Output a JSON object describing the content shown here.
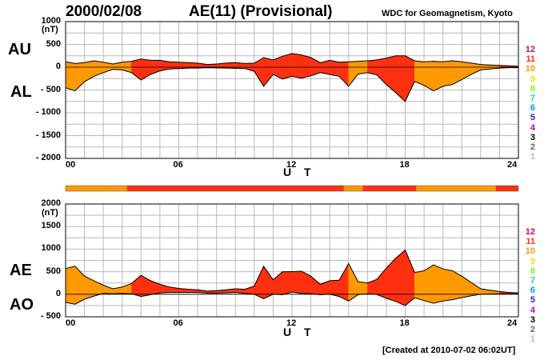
{
  "header": {
    "date": "2000/02/08",
    "title": "AE(11) (Provisional)",
    "organization": "WDC for Geomagnetism, Kyoto",
    "created": "[Created at 2010-07-02 06:02UT]"
  },
  "activity_levels": {
    "labels": [
      "12",
      "11",
      "10",
      "9",
      "8",
      "7",
      "6",
      "5",
      "4",
      "3",
      "2",
      "1"
    ],
    "colors": [
      "#e0006a",
      "#ff3010",
      "#ff9900",
      "#ffe000",
      "#88ee22",
      "#22ccbb",
      "#0099ff",
      "#3322cc",
      "#bb00cc",
      "#000000",
      "#666666",
      "#bbbbbb"
    ]
  },
  "chart_data": [
    {
      "type": "area",
      "panel": "top",
      "series_labels": [
        "AU",
        "AL"
      ],
      "y_unit": "(nT)",
      "ylim": [
        -2000,
        1000
      ],
      "yticks": [
        "1000",
        "500",
        "0",
        "- 500",
        "- 1000",
        "- 1500",
        "- 2000"
      ],
      "xlim": [
        0,
        24
      ],
      "xticks": [
        "00",
        "06",
        "12",
        "18",
        "24"
      ],
      "xlabel": "U T",
      "grid": true,
      "x": [
        0,
        0.5,
        1,
        1.5,
        2,
        2.5,
        3,
        3.5,
        4,
        4.5,
        5,
        5.5,
        6,
        6.5,
        7,
        7.5,
        8,
        8.5,
        9,
        9.5,
        10,
        10.5,
        11,
        11.5,
        12,
        12.5,
        13,
        13.5,
        14,
        14.5,
        15,
        15.5,
        16,
        16.5,
        17,
        17.5,
        18,
        18.5,
        19,
        19.5,
        20,
        20.5,
        21,
        21.5,
        22,
        22.5,
        23,
        23.5,
        24
      ],
      "upper": [
        120,
        80,
        100,
        140,
        110,
        70,
        110,
        130,
        180,
        150,
        150,
        120,
        110,
        100,
        90,
        60,
        70,
        90,
        100,
        80,
        90,
        210,
        160,
        240,
        300,
        270,
        210,
        100,
        150,
        110,
        120,
        130,
        140,
        160,
        200,
        250,
        250,
        140,
        120,
        130,
        120,
        140,
        120,
        90,
        60,
        50,
        40,
        30,
        20
      ],
      "lower": [
        -450,
        -520,
        -320,
        -200,
        -120,
        -50,
        -60,
        -120,
        -280,
        -160,
        -80,
        -40,
        -30,
        -20,
        -20,
        -10,
        -15,
        -20,
        -25,
        -30,
        -90,
        -420,
        -160,
        -260,
        -200,
        -240,
        -190,
        -120,
        -160,
        -200,
        -420,
        -150,
        -120,
        -170,
        -380,
        -560,
        -750,
        -310,
        -400,
        -520,
        -420,
        -380,
        -270,
        -160,
        -60,
        -40,
        -20,
        -10,
        -10
      ],
      "segment_levels": [
        10,
        10,
        10,
        10,
        10,
        10,
        10,
        11,
        11,
        11,
        11,
        11,
        11,
        11,
        11,
        11,
        11,
        11,
        11,
        11,
        11,
        11,
        11,
        11,
        11,
        11,
        11,
        11,
        11,
        11,
        10,
        10,
        11,
        11,
        11,
        11,
        11,
        10,
        10,
        10,
        10,
        10,
        10,
        10,
        10,
        10,
        11,
        11
      ]
    },
    {
      "type": "area",
      "panel": "bottom",
      "series_labels": [
        "AE",
        "AO"
      ],
      "y_unit": "(nT)",
      "ylim": [
        -500,
        2000
      ],
      "yticks": [
        "2000",
        "1500",
        "1000",
        "500",
        "0",
        "- 500"
      ],
      "xlim": [
        0,
        24
      ],
      "xticks": [
        "00",
        "06",
        "12",
        "18",
        "24"
      ],
      "xlabel": "U T",
      "grid": true,
      "x": [
        0,
        0.5,
        1,
        1.5,
        2,
        2.5,
        3,
        3.5,
        4,
        4.5,
        5,
        5.5,
        6,
        6.5,
        7,
        7.5,
        8,
        8.5,
        9,
        9.5,
        10,
        10.5,
        11,
        11.5,
        12,
        12.5,
        13,
        13.5,
        14,
        14.5,
        15,
        15.5,
        16,
        16.5,
        17,
        17.5,
        18,
        18.5,
        19,
        19.5,
        20,
        20.5,
        21,
        21.5,
        22,
        22.5,
        23,
        23.5,
        24
      ],
      "upper": [
        570,
        620,
        400,
        300,
        200,
        120,
        160,
        240,
        420,
        300,
        220,
        160,
        130,
        110,
        100,
        70,
        80,
        100,
        120,
        110,
        180,
        620,
        320,
        500,
        500,
        510,
        400,
        220,
        300,
        310,
        680,
        280,
        250,
        330,
        580,
        800,
        980,
        480,
        520,
        650,
        560,
        520,
        400,
        260,
        120,
        90,
        60,
        40,
        30
      ],
      "lower": [
        -180,
        -220,
        -110,
        -40,
        20,
        10,
        20,
        10,
        -50,
        -10,
        30,
        40,
        40,
        40,
        40,
        25,
        25,
        30,
        40,
        20,
        0,
        -100,
        0,
        -10,
        50,
        20,
        10,
        -10,
        0,
        -50,
        -150,
        -10,
        10,
        -5,
        -90,
        -160,
        -250,
        -80,
        -140,
        -200,
        -150,
        -120,
        -75,
        -35,
        0,
        5,
        10,
        10,
        5
      ],
      "segment_levels": [
        10,
        10,
        10,
        10,
        10,
        10,
        10,
        11,
        11,
        11,
        11,
        11,
        11,
        11,
        11,
        11,
        11,
        11,
        11,
        11,
        11,
        11,
        11,
        11,
        11,
        11,
        11,
        11,
        11,
        11,
        10,
        10,
        11,
        11,
        11,
        11,
        11,
        10,
        10,
        10,
        10,
        10,
        10,
        10,
        10,
        10,
        11,
        11
      ]
    }
  ],
  "level_bar": {
    "segments": [
      {
        "start": 0,
        "end": 3.25,
        "level": 10
      },
      {
        "start": 3.25,
        "end": 14.75,
        "level": 11
      },
      {
        "start": 14.75,
        "end": 15.75,
        "level": 10
      },
      {
        "start": 15.75,
        "end": 18.6,
        "level": 11
      },
      {
        "start": 18.6,
        "end": 22.8,
        "level": 10
      },
      {
        "start": 22.8,
        "end": 24,
        "level": 11
      }
    ]
  }
}
